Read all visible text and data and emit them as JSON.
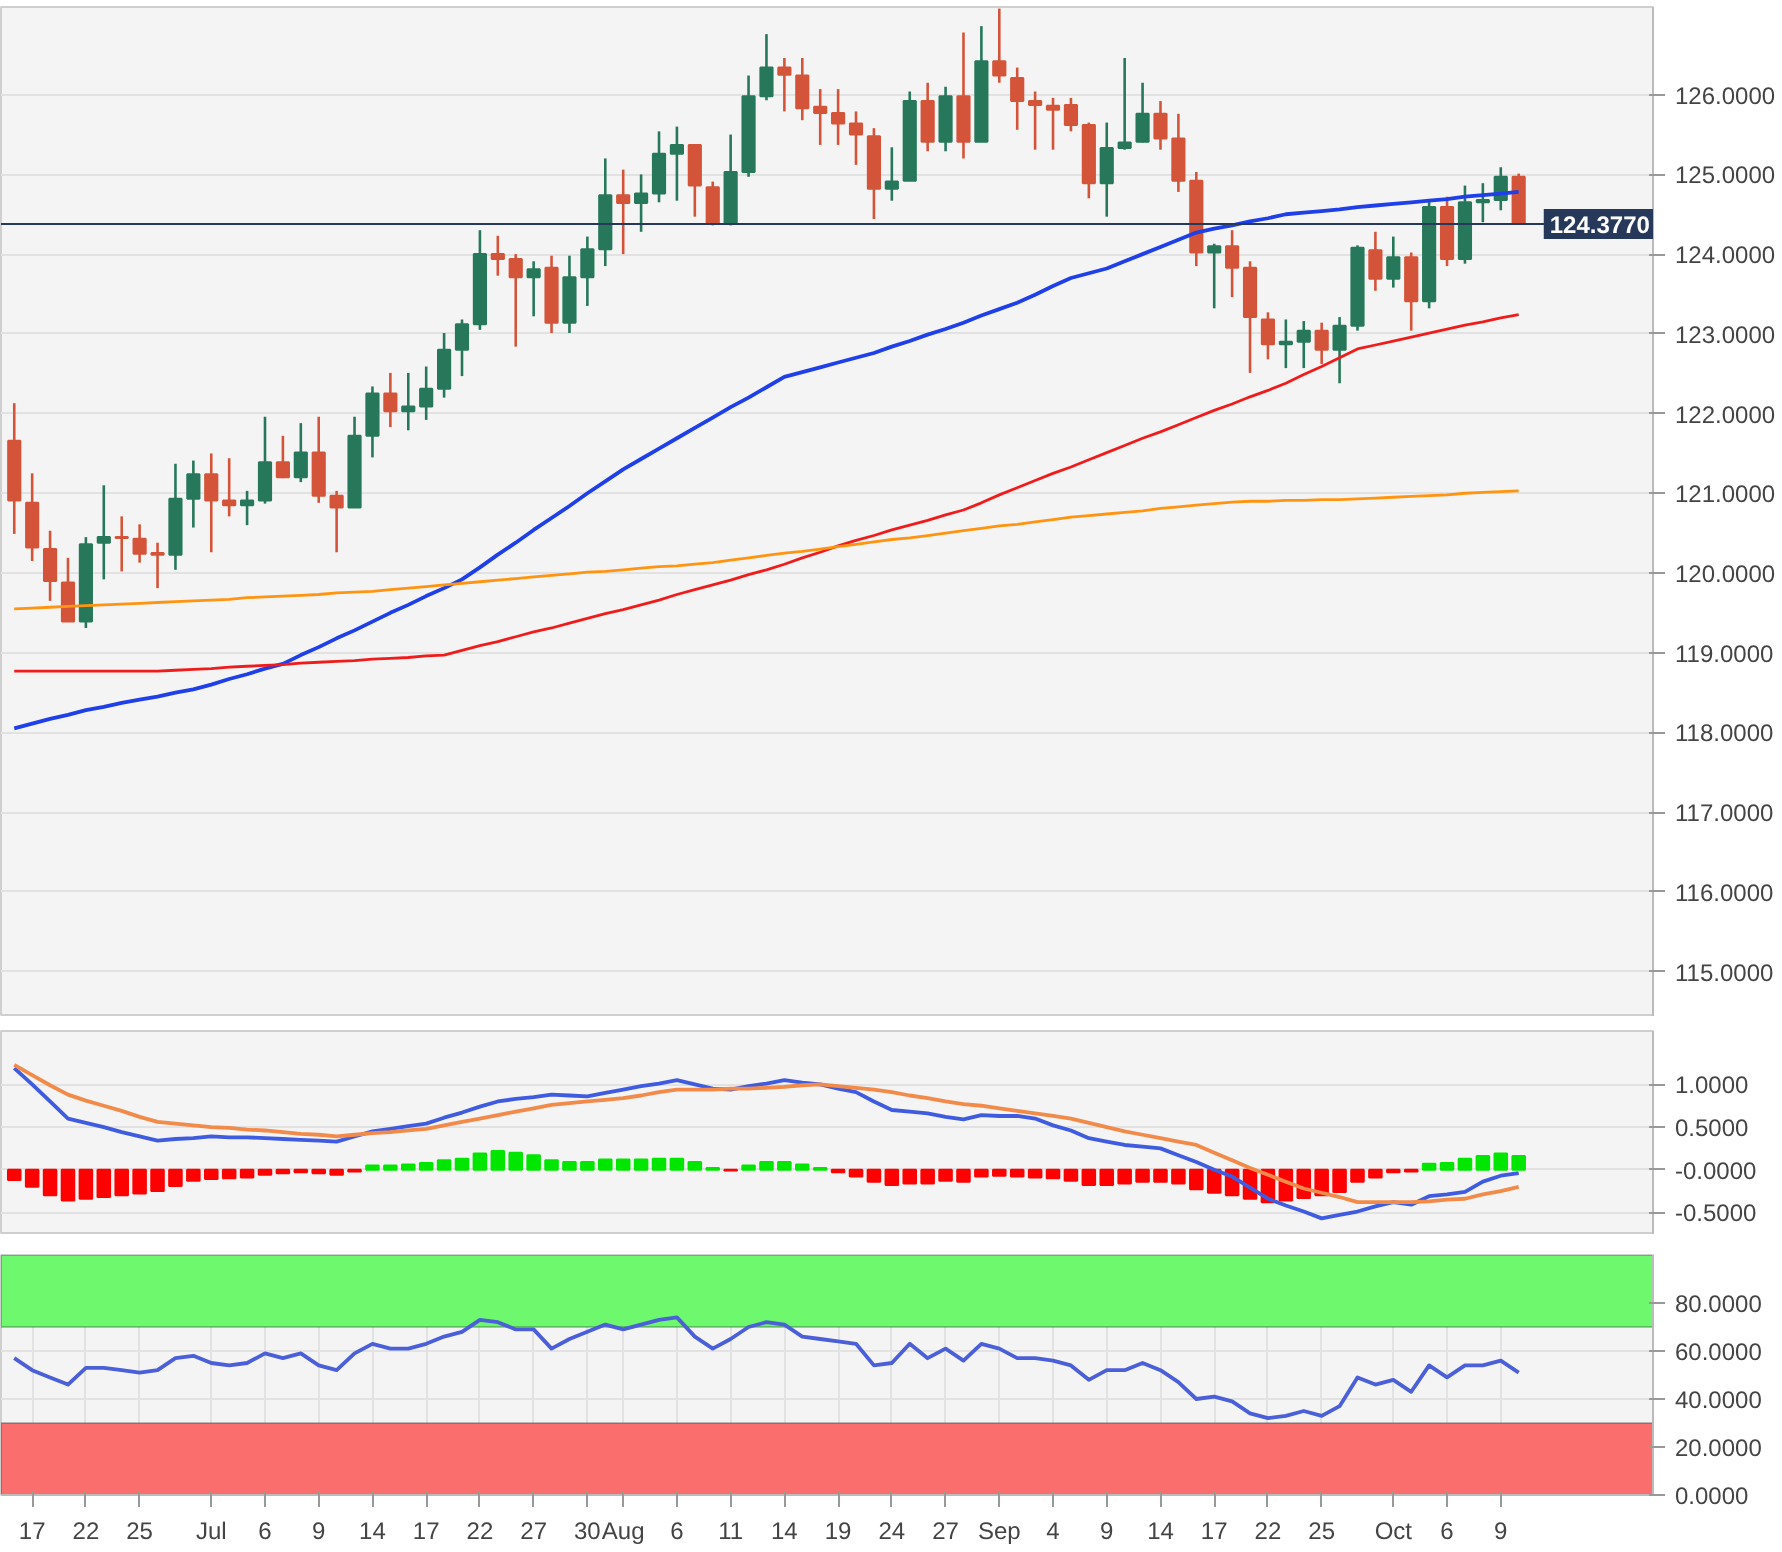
{
  "chart_data": [
    {
      "type": "candlestick",
      "categories": [
        null,
        null,
        null,
        null,
        null,
        null,
        null,
        null,
        null,
        null,
        null,
        null,
        null,
        null,
        null,
        null,
        null,
        null,
        null,
        null,
        null,
        null,
        null,
        null,
        null,
        null,
        null,
        null,
        null,
        null,
        null,
        null,
        null,
        null,
        null,
        null,
        null,
        null,
        null,
        null,
        null,
        null,
        null,
        null,
        null,
        null,
        null,
        null,
        null,
        null,
        null,
        null,
        null,
        null,
        null,
        null,
        null,
        null,
        null,
        null,
        null,
        null,
        null,
        null,
        null,
        null,
        null,
        null,
        null,
        null,
        null,
        null,
        null,
        null,
        null,
        null,
        null,
        null,
        null,
        null,
        null,
        null,
        null,
        null,
        null
      ],
      "ohlc": [
        [
          121.66,
          122.13,
          120.49,
          120.91
        ],
        [
          120.88,
          121.25,
          120.15,
          120.32
        ],
        [
          120.3,
          120.53,
          119.65,
          119.9
        ],
        [
          119.88,
          120.19,
          119.39,
          119.39
        ],
        [
          119.39,
          120.45,
          119.31,
          120.36
        ],
        [
          120.38,
          121.1,
          119.92,
          120.45
        ],
        [
          120.45,
          120.71,
          120.02,
          120.44
        ],
        [
          120.43,
          120.61,
          120.13,
          120.24
        ],
        [
          120.25,
          120.38,
          119.81,
          120.23
        ],
        [
          120.23,
          121.37,
          120.04,
          120.93
        ],
        [
          120.93,
          121.41,
          120.57,
          121.24
        ],
        [
          121.24,
          121.5,
          120.26,
          120.91
        ],
        [
          120.91,
          121.44,
          120.71,
          120.85
        ],
        [
          120.85,
          121.03,
          120.6,
          120.91
        ],
        [
          120.91,
          121.96,
          120.87,
          121.39
        ],
        [
          121.39,
          121.72,
          121.19,
          121.2
        ],
        [
          121.2,
          121.88,
          121.14,
          121.51
        ],
        [
          121.51,
          121.96,
          120.88,
          120.97
        ],
        [
          120.97,
          121.03,
          120.26,
          120.82
        ],
        [
          120.82,
          121.96,
          120.82,
          121.72
        ],
        [
          121.72,
          122.34,
          121.45,
          122.25
        ],
        [
          122.25,
          122.51,
          121.83,
          122.03
        ],
        [
          122.03,
          122.51,
          121.79,
          122.09
        ],
        [
          122.09,
          122.59,
          121.92,
          122.31
        ],
        [
          122.31,
          123.01,
          122.2,
          122.8
        ],
        [
          122.8,
          123.18,
          122.47,
          123.12
        ],
        [
          123.12,
          124.3,
          123.05,
          124.0
        ],
        [
          124.0,
          124.23,
          123.73,
          123.94
        ],
        [
          123.94,
          124.0,
          122.84,
          123.71
        ],
        [
          123.71,
          123.91,
          123.22,
          123.81
        ],
        [
          123.83,
          123.98,
          123.01,
          123.14
        ],
        [
          123.14,
          123.98,
          123.01,
          123.71
        ],
        [
          123.71,
          124.22,
          123.35,
          124.06
        ],
        [
          124.06,
          125.2,
          123.85,
          124.74
        ],
        [
          124.74,
          125.06,
          124.0,
          124.64
        ],
        [
          124.64,
          125.0,
          124.28,
          124.76
        ],
        [
          124.76,
          125.54,
          124.65,
          125.26
        ],
        [
          125.26,
          125.6,
          124.67,
          125.37
        ],
        [
          125.37,
          125.37,
          124.47,
          124.86
        ],
        [
          124.84,
          124.91,
          124.36,
          124.38
        ],
        [
          124.38,
          125.5,
          124.36,
          125.03
        ],
        [
          125.03,
          126.24,
          124.97,
          125.98
        ],
        [
          125.98,
          126.76,
          125.93,
          126.34
        ],
        [
          126.34,
          126.46,
          125.79,
          126.25
        ],
        [
          126.24,
          126.46,
          125.68,
          125.83
        ],
        [
          125.85,
          126.07,
          125.37,
          125.77
        ],
        [
          125.77,
          126.07,
          125.37,
          125.64
        ],
        [
          125.64,
          125.79,
          125.12,
          125.5
        ],
        [
          125.48,
          125.58,
          124.44,
          124.82
        ],
        [
          124.82,
          125.34,
          124.67,
          124.91
        ],
        [
          124.92,
          126.04,
          124.92,
          125.92
        ],
        [
          125.92,
          126.15,
          125.29,
          125.41
        ],
        [
          125.41,
          126.1,
          125.29,
          125.98
        ],
        [
          125.98,
          126.78,
          125.2,
          125.41
        ],
        [
          125.41,
          126.86,
          125.41,
          126.42
        ],
        [
          126.42,
          127.08,
          126.15,
          126.24
        ],
        [
          126.21,
          126.34,
          125.56,
          125.92
        ],
        [
          125.92,
          126.04,
          125.31,
          125.87
        ],
        [
          125.86,
          125.96,
          125.31,
          125.81
        ],
        [
          125.87,
          125.96,
          125.54,
          125.62
        ],
        [
          125.62,
          125.65,
          124.7,
          124.89
        ],
        [
          124.89,
          125.65,
          124.47,
          125.33
        ],
        [
          125.33,
          126.46,
          125.31,
          125.4
        ],
        [
          125.41,
          126.15,
          125.4,
          125.76
        ],
        [
          125.76,
          125.92,
          125.31,
          125.45
        ],
        [
          125.45,
          125.76,
          124.78,
          124.92
        ],
        [
          124.92,
          125.03,
          123.85,
          124.02
        ],
        [
          124.02,
          124.13,
          123.32,
          124.1
        ],
        [
          124.1,
          124.3,
          123.46,
          123.83
        ],
        [
          123.83,
          123.91,
          122.51,
          123.21
        ],
        [
          123.18,
          123.27,
          122.68,
          122.87
        ],
        [
          122.87,
          123.18,
          122.57,
          122.9
        ],
        [
          122.9,
          123.16,
          122.57,
          123.04
        ],
        [
          123.04,
          123.14,
          122.62,
          122.8
        ],
        [
          122.8,
          123.21,
          122.38,
          123.1
        ],
        [
          123.1,
          124.11,
          123.04,
          124.08
        ],
        [
          124.05,
          124.28,
          123.54,
          123.69
        ],
        [
          123.69,
          124.22,
          123.58,
          123.96
        ],
        [
          123.96,
          124.02,
          123.04,
          123.41
        ],
        [
          123.41,
          124.67,
          123.32,
          124.59
        ],
        [
          124.59,
          124.72,
          123.85,
          123.94
        ],
        [
          123.94,
          124.86,
          123.88,
          124.65
        ],
        [
          124.65,
          124.89,
          124.4,
          124.68
        ],
        [
          124.68,
          125.09,
          124.55,
          124.97
        ],
        [
          124.97,
          125.01,
          124.377,
          124.377
        ]
      ],
      "series": [
        {
          "type": "line",
          "color": "#1f3fe8",
          "values": [
            118.05,
            118.11,
            118.17,
            118.22,
            118.28,
            118.32,
            118.37,
            118.41,
            118.45,
            118.5,
            118.54,
            118.6,
            118.67,
            118.73,
            118.8,
            118.86,
            118.97,
            119.07,
            119.18,
            119.28,
            119.39,
            119.5,
            119.6,
            119.71,
            119.81,
            119.92,
            120.07,
            120.23,
            120.38,
            120.54,
            120.69,
            120.84,
            121.0,
            121.15,
            121.3,
            121.43,
            121.56,
            121.69,
            121.82,
            121.95,
            122.08,
            122.2,
            122.33,
            122.46,
            122.52,
            122.58,
            122.64,
            122.7,
            122.76,
            122.84,
            122.91,
            122.99,
            123.06,
            123.14,
            123.23,
            123.31,
            123.39,
            123.49,
            123.6,
            123.7,
            123.76,
            123.82,
            123.91,
            124.0,
            124.09,
            124.18,
            124.27,
            124.32,
            124.36,
            124.41,
            124.45,
            124.5,
            124.52,
            124.54,
            124.56,
            124.59,
            124.61,
            124.63,
            124.65,
            124.67,
            124.69,
            124.72,
            124.74,
            124.76,
            124.78
          ]
        },
        {
          "type": "line",
          "color": "#f01c1c",
          "values": [
            118.77,
            118.77,
            118.77,
            118.77,
            118.77,
            118.77,
            118.77,
            118.77,
            118.77,
            118.78,
            118.79,
            118.8,
            118.82,
            118.83,
            118.84,
            118.85,
            118.87,
            118.88,
            118.89,
            118.9,
            118.92,
            118.93,
            118.94,
            118.96,
            118.97,
            119.03,
            119.09,
            119.14,
            119.2,
            119.26,
            119.31,
            119.37,
            119.43,
            119.49,
            119.54,
            119.6,
            119.66,
            119.73,
            119.79,
            119.85,
            119.91,
            119.98,
            120.04,
            120.11,
            120.19,
            120.26,
            120.34,
            120.41,
            120.47,
            120.54,
            120.6,
            120.66,
            120.73,
            120.79,
            120.88,
            120.98,
            121.07,
            121.16,
            121.25,
            121.33,
            121.42,
            121.51,
            121.6,
            121.69,
            121.77,
            121.86,
            121.95,
            122.04,
            122.12,
            122.21,
            122.29,
            122.38,
            122.49,
            122.59,
            122.7,
            122.81,
            122.86,
            122.91,
            122.96,
            123.01,
            123.06,
            123.11,
            123.15,
            123.2,
            123.24
          ]
        },
        {
          "type": "line",
          "color": "#ff9410",
          "values": [
            119.55,
            119.56,
            119.57,
            119.58,
            119.59,
            119.6,
            119.61,
            119.62,
            119.63,
            119.64,
            119.65,
            119.66,
            119.67,
            119.69,
            119.7,
            119.71,
            119.72,
            119.73,
            119.75,
            119.76,
            119.77,
            119.79,
            119.81,
            119.83,
            119.85,
            119.87,
            119.89,
            119.91,
            119.93,
            119.95,
            119.97,
            119.99,
            120.01,
            120.02,
            120.04,
            120.06,
            120.08,
            120.09,
            120.11,
            120.13,
            120.16,
            120.19,
            120.22,
            120.25,
            120.27,
            120.3,
            120.33,
            120.36,
            120.39,
            120.42,
            120.44,
            120.47,
            120.5,
            120.53,
            120.56,
            120.59,
            120.61,
            120.64,
            120.67,
            120.7,
            120.72,
            120.74,
            120.76,
            120.78,
            120.81,
            120.83,
            120.85,
            120.87,
            120.89,
            120.9,
            120.9,
            120.91,
            120.91,
            120.92,
            120.92,
            120.93,
            120.94,
            120.95,
            120.96,
            120.97,
            120.98,
            121.0,
            121.01,
            121.02,
            121.03
          ]
        }
      ],
      "ylim": [
        114.43,
        127.1
      ],
      "yticks": [
        {
          "value": 115,
          "label": "115.0000"
        },
        {
          "value": 116,
          "label": "116.0000"
        },
        {
          "value": 117,
          "label": "117.0000"
        },
        {
          "value": 118,
          "label": "118.0000"
        },
        {
          "value": 119,
          "label": "119.0000"
        },
        {
          "value": 120,
          "label": "120.0000"
        },
        {
          "value": 121,
          "label": "121.0000"
        },
        {
          "value": 122,
          "label": "122.0000"
        },
        {
          "value": 123,
          "label": "123.0000"
        },
        {
          "value": 124,
          "label": "124.0000"
        },
        {
          "value": 125,
          "label": "125.0000"
        },
        {
          "value": 126,
          "label": "126.0000"
        }
      ],
      "ref_lines": [
        {
          "axis": "y",
          "value": 124.377,
          "label": "124.3770",
          "color": "#27395a"
        }
      ],
      "grid": "y",
      "tick_labels": "y"
    },
    {
      "type": "bar",
      "categories": [
        null,
        null,
        null,
        null,
        null,
        null,
        null,
        null,
        null,
        null,
        null,
        null,
        null,
        null,
        null,
        null,
        null,
        null,
        null,
        null,
        null,
        null,
        null,
        null,
        null,
        null,
        null,
        null,
        null,
        null,
        null,
        null,
        null,
        null,
        null,
        null,
        null,
        null,
        null,
        null,
        null,
        null,
        null,
        null,
        null,
        null,
        null,
        null,
        null,
        null,
        null,
        null,
        null,
        null,
        null,
        null,
        null,
        null,
        null,
        null,
        null,
        null,
        null,
        null,
        null,
        null,
        null,
        null,
        null,
        null,
        null,
        null,
        null,
        null,
        null,
        null,
        null,
        null,
        null,
        null,
        null,
        null,
        null,
        null,
        null
      ],
      "series": [
        {
          "values": [
            -0.12,
            -0.2,
            -0.3,
            -0.36,
            -0.34,
            -0.32,
            -0.3,
            -0.28,
            -0.25,
            -0.19,
            -0.13,
            -0.11,
            -0.1,
            -0.09,
            -0.06,
            -0.04,
            -0.03,
            -0.04,
            -0.06,
            -0.02,
            0.05,
            0.05,
            0.06,
            0.08,
            0.11,
            0.13,
            0.19,
            0.22,
            0.2,
            0.17,
            0.11,
            0.09,
            0.09,
            0.12,
            0.12,
            0.12,
            0.13,
            0.13,
            0.09,
            0.02,
            -0.01,
            0.05,
            0.09,
            0.09,
            0.06,
            0.02,
            -0.03,
            -0.08,
            -0.14,
            -0.18,
            -0.16,
            -0.16,
            -0.13,
            -0.14,
            -0.08,
            -0.07,
            -0.08,
            -0.09,
            -0.1,
            -0.13,
            -0.18,
            -0.18,
            -0.16,
            -0.14,
            -0.14,
            -0.16,
            -0.23,
            -0.27,
            -0.3,
            -0.34,
            -0.38,
            -0.36,
            -0.33,
            -0.3,
            -0.26,
            -0.14,
            -0.09,
            -0.03,
            -0.02,
            0.07,
            0.08,
            0.13,
            0.16,
            0.19,
            0.16
          ],
          "colors": [
            "#ff0000",
            "#ff0000",
            "#ff0000",
            "#ff0000",
            "#ff0000",
            "#ff0000",
            "#ff0000",
            "#ff0000",
            "#ff0000",
            "#ff0000",
            "#ff0000",
            "#ff0000",
            "#ff0000",
            "#ff0000",
            "#ff0000",
            "#ff0000",
            "#ff0000",
            "#ff0000",
            "#ff0000",
            "#ff0000",
            "#00e600",
            "#00e600",
            "#00e600",
            "#00e600",
            "#00e600",
            "#00e600",
            "#00e600",
            "#00e600",
            "#00e600",
            "#00e600",
            "#00e600",
            "#00e600",
            "#00e600",
            "#00e600",
            "#00e600",
            "#00e600",
            "#00e600",
            "#00e600",
            "#00e600",
            "#00e600",
            "#ff0000",
            "#00e600",
            "#00e600",
            "#00e600",
            "#00e600",
            "#00e600",
            "#ff0000",
            "#ff0000",
            "#ff0000",
            "#ff0000",
            "#ff0000",
            "#ff0000",
            "#ff0000",
            "#ff0000",
            "#ff0000",
            "#ff0000",
            "#ff0000",
            "#ff0000",
            "#ff0000",
            "#ff0000",
            "#ff0000",
            "#ff0000",
            "#ff0000",
            "#ff0000",
            "#ff0000",
            "#ff0000",
            "#ff0000",
            "#ff0000",
            "#ff0000",
            "#ff0000",
            "#ff0000",
            "#ff0000",
            "#ff0000",
            "#ff0000",
            "#ff0000",
            "#ff0000",
            "#ff0000",
            "#ff0000",
            "#ff0000",
            "#00e600",
            "#00e600",
            "#00e600",
            "#00e600",
            "#00e600",
            "#00e600"
          ]
        },
        {
          "type": "line",
          "color": "#3f5be0",
          "values": [
            1.19,
            1.0,
            0.8,
            0.6,
            0.55,
            0.5,
            0.44,
            0.39,
            0.34,
            0.36,
            0.37,
            0.39,
            0.38,
            0.38,
            0.37,
            0.36,
            0.35,
            0.34,
            0.33,
            0.39,
            0.45,
            0.48,
            0.51,
            0.54,
            0.61,
            0.67,
            0.74,
            0.8,
            0.83,
            0.85,
            0.88,
            0.87,
            0.86,
            0.9,
            0.94,
            0.98,
            1.01,
            1.05,
            1.0,
            0.95,
            0.94,
            0.98,
            1.01,
            1.05,
            1.02,
            1.0,
            0.95,
            0.91,
            0.8,
            0.7,
            0.68,
            0.66,
            0.62,
            0.59,
            0.64,
            0.63,
            0.63,
            0.6,
            0.52,
            0.46,
            0.37,
            0.33,
            0.29,
            0.27,
            0.25,
            0.17,
            0.09,
            0.0,
            -0.08,
            -0.21,
            -0.34,
            -0.42,
            -0.49,
            -0.57,
            -0.53,
            -0.49,
            -0.43,
            -0.38,
            -0.41,
            -0.31,
            -0.29,
            -0.26,
            -0.14,
            -0.07,
            -0.04
          ]
        },
        {
          "type": "line",
          "color": "#f28a4a",
          "values": [
            1.23,
            1.11,
            0.99,
            0.88,
            0.81,
            0.75,
            0.69,
            0.62,
            0.56,
            0.54,
            0.52,
            0.5,
            0.49,
            0.47,
            0.46,
            0.44,
            0.42,
            0.41,
            0.39,
            0.41,
            0.43,
            0.44,
            0.46,
            0.48,
            0.52,
            0.56,
            0.6,
            0.64,
            0.68,
            0.72,
            0.76,
            0.78,
            0.8,
            0.82,
            0.84,
            0.87,
            0.91,
            0.94,
            0.94,
            0.94,
            0.95,
            0.95,
            0.96,
            0.97,
            0.99,
            1.0,
            0.98,
            0.96,
            0.94,
            0.91,
            0.87,
            0.84,
            0.8,
            0.77,
            0.75,
            0.72,
            0.69,
            0.66,
            0.63,
            0.6,
            0.55,
            0.5,
            0.45,
            0.41,
            0.37,
            0.33,
            0.29,
            0.2,
            0.11,
            0.02,
            -0.06,
            -0.14,
            -0.22,
            -0.27,
            -0.32,
            -0.38,
            -0.38,
            -0.38,
            -0.38,
            -0.37,
            -0.35,
            -0.34,
            -0.29,
            -0.25,
            -0.2
          ]
        }
      ],
      "ylim": [
        -0.765,
        1.626
      ],
      "yticks": [
        {
          "value": -0.5,
          "label": "-0.5000"
        },
        {
          "value": 0,
          "label": "-0.0000"
        },
        {
          "value": 0.5,
          "label": "0.5000"
        },
        {
          "value": 1,
          "label": "1.0000"
        }
      ],
      "grid": "y",
      "tick_labels": "y"
    },
    {
      "type": "line",
      "categories": [
        null,
        "17",
        null,
        null,
        "22",
        null,
        null,
        "25",
        null,
        null,
        null,
        "Jul",
        null,
        null,
        "6",
        null,
        null,
        "9",
        null,
        null,
        "14",
        null,
        null,
        "17",
        null,
        null,
        "22",
        null,
        null,
        "27",
        null,
        null,
        "30",
        null,
        "Aug",
        null,
        null,
        "6",
        null,
        null,
        "11",
        null,
        null,
        "14",
        null,
        null,
        "19",
        null,
        null,
        "24",
        null,
        null,
        "27",
        null,
        null,
        "Sep",
        null,
        null,
        "4",
        null,
        null,
        "9",
        null,
        null,
        "14",
        null,
        null,
        "17",
        null,
        null,
        "22",
        null,
        null,
        "25",
        null,
        null,
        null,
        "Oct",
        null,
        null,
        "6",
        null,
        null,
        "9",
        null
      ],
      "series": [
        {
          "color": "#4a5fd8",
          "values": [
            57,
            52,
            49,
            46,
            53,
            53,
            52,
            51,
            52,
            57,
            58,
            55,
            54,
            55,
            59,
            57,
            59,
            54,
            52,
            59,
            63,
            61,
            61,
            63,
            66,
            68,
            73,
            72,
            69,
            69,
            61,
            65,
            68,
            71,
            69,
            71,
            73,
            74,
            66,
            61,
            65,
            70,
            72,
            71,
            66,
            65,
            64,
            63,
            54,
            55,
            63,
            57,
            61,
            56,
            63,
            61,
            57,
            57,
            56,
            54,
            48,
            52,
            52,
            55,
            52,
            47,
            40,
            41,
            39,
            34,
            32,
            33,
            35,
            33,
            37,
            49,
            46,
            48,
            43,
            54,
            49,
            54,
            54,
            56,
            51
          ]
        }
      ],
      "ylim": [
        0,
        100
      ],
      "yticks": [
        {
          "value": 0,
          "label": "0.0000"
        },
        {
          "value": 20,
          "label": "20.0000"
        },
        {
          "value": 40,
          "label": "40.0000"
        },
        {
          "value": 60,
          "label": "60.0000"
        },
        {
          "value": 80,
          "label": "80.0000"
        }
      ],
      "bands": [
        {
          "axis": "y",
          "from": 70,
          "to": 100,
          "color": "#6ef86e"
        },
        {
          "axis": "y",
          "from": 0,
          "to": 30,
          "color": "#fa6e6e"
        }
      ],
      "grid": true
    }
  ]
}
